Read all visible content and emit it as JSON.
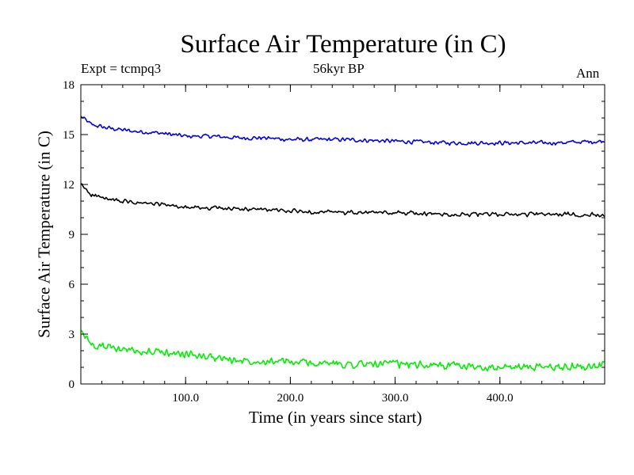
{
  "chart_data": {
    "type": "line",
    "title": "Surface Air Temperature (in C)",
    "subtitle_left": "Expt = tcmpq3",
    "subtitle_center": "56kyr BP",
    "subtitle_right": "Ann",
    "xlabel": "Time (in years since start)",
    "ylabel": "Surface Air Temperature (in C)",
    "xlim": [
      0,
      500
    ],
    "ylim": [
      0,
      18
    ],
    "xticks": [
      100,
      200,
      300,
      400
    ],
    "xtick_labels": [
      "100.0",
      "200.0",
      "300.0",
      "400.0"
    ],
    "yticks": [
      0,
      3,
      6,
      9,
      12,
      15,
      18
    ],
    "ytick_labels": [
      "0",
      "3",
      "6",
      "9",
      "12",
      "15",
      "18"
    ],
    "grid": false,
    "series": [
      {
        "color": "#0000dd",
        "x": [
          0,
          10,
          25,
          50,
          75,
          100,
          125,
          150,
          175,
          200,
          250,
          300,
          350,
          400,
          450,
          500
        ],
        "y": [
          16.1,
          15.6,
          15.4,
          15.2,
          15.1,
          14.9,
          14.9,
          14.8,
          14.8,
          14.7,
          14.7,
          14.6,
          14.5,
          14.5,
          14.5,
          14.6
        ]
      },
      {
        "color": "#000000",
        "x": [
          0,
          10,
          25,
          50,
          75,
          100,
          125,
          150,
          175,
          200,
          250,
          300,
          350,
          400,
          450,
          500
        ],
        "y": [
          12.0,
          11.4,
          11.1,
          10.9,
          10.8,
          10.6,
          10.6,
          10.5,
          10.5,
          10.4,
          10.3,
          10.3,
          10.2,
          10.2,
          10.2,
          10.2
        ]
      },
      {
        "color": "#00ee00",
        "x": [
          0,
          10,
          25,
          50,
          75,
          100,
          125,
          150,
          175,
          200,
          250,
          300,
          350,
          400,
          450,
          500
        ],
        "y": [
          3.2,
          2.4,
          2.2,
          2.0,
          1.9,
          1.8,
          1.6,
          1.4,
          1.4,
          1.3,
          1.2,
          1.2,
          1.1,
          1.0,
          1.0,
          1.1
        ]
      }
    ]
  }
}
